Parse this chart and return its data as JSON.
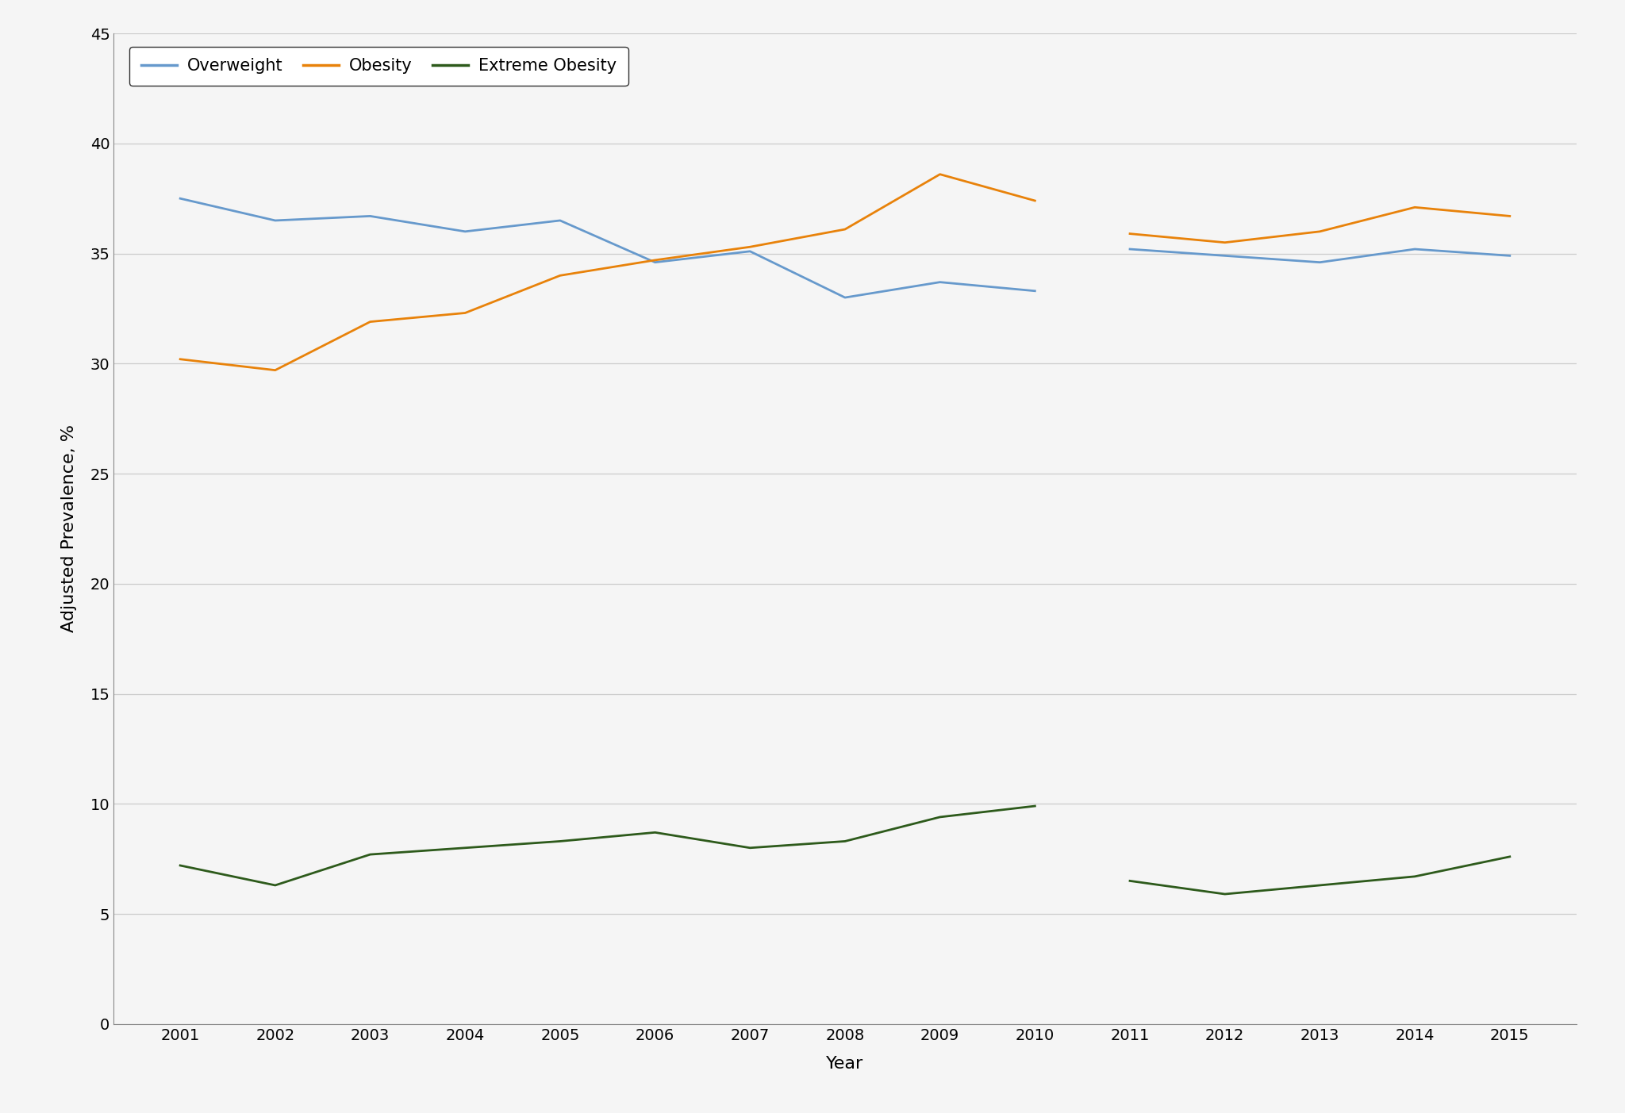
{
  "years_2001_2010": [
    2001,
    2002,
    2003,
    2004,
    2005,
    2006,
    2007,
    2008,
    2009,
    2010
  ],
  "years_2011_2015": [
    2011,
    2012,
    2013,
    2014,
    2015
  ],
  "overweight_2001_2010": [
    37.5,
    36.5,
    36.7,
    36.0,
    36.5,
    34.6,
    35.1,
    33.0,
    33.7,
    33.3
  ],
  "overweight_2011_2015": [
    35.2,
    34.9,
    34.6,
    35.2,
    34.9
  ],
  "obesity_2001_2010": [
    30.2,
    29.7,
    31.9,
    32.3,
    34.0,
    34.7,
    35.3,
    36.1,
    38.6,
    37.4
  ],
  "obesity_2011_2015": [
    35.9,
    35.5,
    36.0,
    37.1,
    36.7
  ],
  "extreme_obesity_2001_2010": [
    7.2,
    6.3,
    7.7,
    8.0,
    8.3,
    8.7,
    8.0,
    8.3,
    9.4,
    9.9
  ],
  "extreme_obesity_2011_2015": [
    6.5,
    5.9,
    6.3,
    6.7,
    7.6
  ],
  "overweight_color": "#6699CC",
  "obesity_color": "#E8820A",
  "extreme_obesity_color": "#2D5A1B",
  "ylabel": "Adjusted Prevalence, %",
  "xlabel": "Year",
  "ylim": [
    0,
    45
  ],
  "yticks": [
    0,
    5,
    10,
    15,
    20,
    25,
    30,
    35,
    40,
    45
  ],
  "background_color": "#f5f5f5",
  "plot_background": "#f5f5f5",
  "grid_color": "#cccccc",
  "line_width": 2.0,
  "legend_fontsize": 15,
  "axis_label_fontsize": 16,
  "tick_fontsize": 14
}
